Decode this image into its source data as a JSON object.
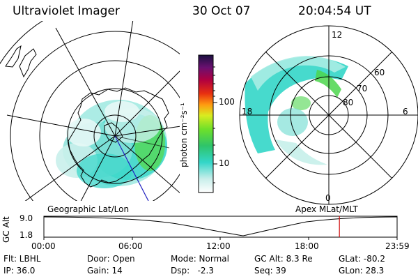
{
  "header": {
    "title": "Ultraviolet Imager",
    "date": "30 Oct 07",
    "time": "20:04:54 UT"
  },
  "colorbar": {
    "unit_label": "photon cm⁻²s⁻¹",
    "ticks": [
      "100",
      "10"
    ]
  },
  "maps": {
    "left_caption": "Geographic Lat/Lon",
    "right_caption": "Apex MLat/MLT",
    "mlt_labels": {
      "top": "12",
      "left": "18",
      "right": "6",
      "bottom": "0"
    },
    "mlat_labels": [
      "60",
      "70",
      "80"
    ]
  },
  "altitude_plot": {
    "ylabel": "GC Alt",
    "yticks": [
      "9.0",
      "1.8"
    ],
    "xticks": [
      "00:00",
      "06:00",
      "12:00",
      "18:00",
      "23:59"
    ],
    "current_time_hours": 20.08
  },
  "params": {
    "flt": "Flt: LBHL",
    "ip": "IP: 36.0",
    "door": "Door: Open",
    "gain": "Gain: 14",
    "mode": "Mode: Normal",
    "dsp": "Dsp:   -2.3",
    "gc_alt": "GC Alt: 8.3 Re",
    "seq": "Seq: 39",
    "glat": "GLat: -80.2",
    "glon": "GLon: 28.3"
  },
  "colors": {
    "aurora_main": "#33d6c8",
    "aurora_light": "#a8ece4",
    "aurora_green": "#4cd64c",
    "marker": "#d01010",
    "meridian": "#2020c0"
  }
}
